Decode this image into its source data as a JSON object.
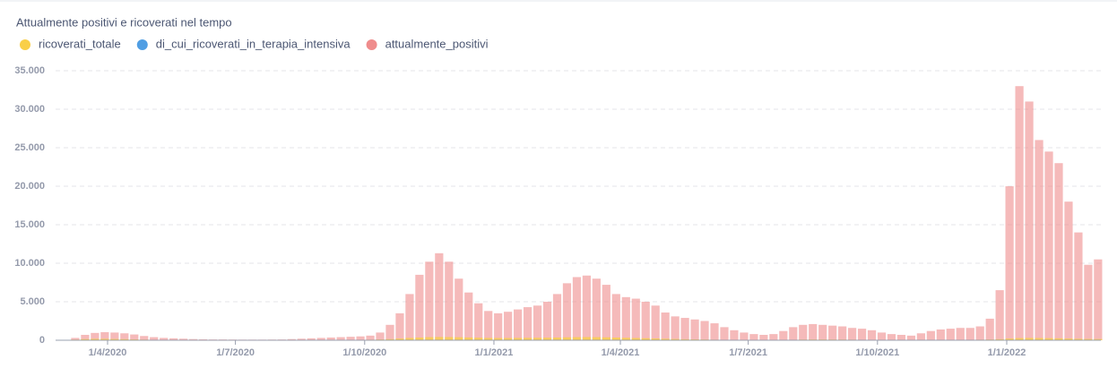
{
  "chart_data": {
    "type": "bar",
    "title": "Attualmente positivi e ricoverati nel tempo",
    "x": [
      "2020-03-02",
      "2020-03-09",
      "2020-03-16",
      "2020-03-23",
      "2020-03-30",
      "2020-04-06",
      "2020-04-13",
      "2020-04-20",
      "2020-04-27",
      "2020-05-04",
      "2020-05-11",
      "2020-05-18",
      "2020-05-25",
      "2020-06-01",
      "2020-06-08",
      "2020-06-15",
      "2020-06-22",
      "2020-06-29",
      "2020-07-06",
      "2020-07-13",
      "2020-07-20",
      "2020-07-27",
      "2020-08-03",
      "2020-08-10",
      "2020-08-17",
      "2020-08-24",
      "2020-08-31",
      "2020-09-07",
      "2020-09-14",
      "2020-09-21",
      "2020-09-28",
      "2020-10-05",
      "2020-10-12",
      "2020-10-19",
      "2020-10-26",
      "2020-11-02",
      "2020-11-09",
      "2020-11-16",
      "2020-11-23",
      "2020-11-30",
      "2020-12-07",
      "2020-12-14",
      "2020-12-21",
      "2020-12-28",
      "2021-01-04",
      "2021-01-11",
      "2021-01-18",
      "2021-01-25",
      "2021-02-01",
      "2021-02-08",
      "2021-02-15",
      "2021-02-22",
      "2021-03-01",
      "2021-03-08",
      "2021-03-15",
      "2021-03-22",
      "2021-03-29",
      "2021-04-05",
      "2021-04-12",
      "2021-04-19",
      "2021-04-26",
      "2021-05-03",
      "2021-05-10",
      "2021-05-17",
      "2021-05-24",
      "2021-05-31",
      "2021-06-07",
      "2021-06-14",
      "2021-06-21",
      "2021-06-28",
      "2021-07-05",
      "2021-07-12",
      "2021-07-19",
      "2021-07-26",
      "2021-08-02",
      "2021-08-09",
      "2021-08-16",
      "2021-08-23",
      "2021-08-30",
      "2021-09-06",
      "2021-09-13",
      "2021-09-20",
      "2021-09-27",
      "2021-10-04",
      "2021-10-11",
      "2021-10-18",
      "2021-10-25",
      "2021-11-01",
      "2021-11-08",
      "2021-11-15",
      "2021-11-22",
      "2021-11-29",
      "2021-12-06",
      "2021-12-13",
      "2021-12-20",
      "2021-12-27",
      "2022-01-03",
      "2022-01-10",
      "2022-01-17",
      "2022-01-24",
      "2022-01-31",
      "2022-02-07",
      "2022-02-14",
      "2022-02-21",
      "2022-02-28",
      "2022-03-07"
    ],
    "series": [
      {
        "name": "ricoverati_totale",
        "color": "#f9cf48",
        "values": [
          20,
          80,
          150,
          180,
          180,
          160,
          140,
          110,
          80,
          60,
          40,
          30,
          20,
          15,
          10,
          8,
          6,
          5,
          5,
          5,
          5,
          6,
          8,
          10,
          15,
          20,
          25,
          30,
          40,
          50,
          60,
          70,
          100,
          150,
          220,
          300,
          350,
          400,
          420,
          410,
          390,
          360,
          330,
          300,
          290,
          290,
          300,
          310,
          320,
          330,
          350,
          380,
          400,
          410,
          400,
          380,
          350,
          320,
          290,
          260,
          230,
          190,
          160,
          130,
          110,
          90,
          70,
          50,
          40,
          30,
          25,
          25,
          30,
          40,
          60,
          80,
          90,
          90,
          85,
          80,
          70,
          60,
          50,
          40,
          35,
          30,
          30,
          35,
          40,
          45,
          50,
          55,
          60,
          70,
          90,
          140,
          220,
          280,
          300,
          290,
          270,
          250,
          220,
          190,
          170,
          160
        ]
      },
      {
        "name": "di_cui_ricoverati_in_terapia_intensiva",
        "color": "#509ee3",
        "values": [
          3,
          12,
          25,
          30,
          30,
          27,
          22,
          15,
          10,
          7,
          5,
          3,
          2,
          2,
          1,
          1,
          1,
          1,
          1,
          1,
          1,
          1,
          1,
          2,
          2,
          3,
          3,
          4,
          5,
          6,
          7,
          8,
          12,
          18,
          28,
          38,
          45,
          52,
          55,
          53,
          50,
          46,
          42,
          38,
          36,
          36,
          37,
          38,
          39,
          40,
          42,
          46,
          50,
          52,
          50,
          47,
          43,
          39,
          35,
          31,
          27,
          22,
          18,
          15,
          12,
          10,
          8,
          6,
          4,
          3,
          3,
          3,
          3,
          5,
          8,
          10,
          11,
          11,
          10,
          10,
          9,
          8,
          6,
          5,
          4,
          4,
          4,
          4,
          5,
          5,
          6,
          7,
          7,
          8,
          10,
          15,
          22,
          28,
          30,
          28,
          26,
          24,
          21,
          18,
          16,
          15
        ]
      },
      {
        "name": "attualmente_positivi",
        "color": "#ef8c8c",
        "values": [
          50,
          300,
          700,
          950,
          1050,
          1000,
          900,
          750,
          550,
          400,
          300,
          250,
          200,
          150,
          120,
          100,
          100,
          90,
          80,
          80,
          80,
          90,
          100,
          150,
          200,
          250,
          300,
          350,
          400,
          450,
          500,
          600,
          1000,
          2000,
          3500,
          6000,
          8500,
          10200,
          11300,
          10200,
          8000,
          6200,
          4800,
          3800,
          3500,
          3700,
          4000,
          4300,
          4500,
          5000,
          6000,
          7400,
          8200,
          8400,
          8000,
          7200,
          6000,
          5600,
          5400,
          5000,
          4500,
          3600,
          3100,
          2900,
          2700,
          2500,
          2200,
          1700,
          1300,
          1000,
          800,
          700,
          800,
          1200,
          1700,
          2000,
          2100,
          2000,
          1900,
          1800,
          1600,
          1500,
          1300,
          1000,
          800,
          700,
          600,
          900,
          1200,
          1400,
          1500,
          1600,
          1600,
          1800,
          2800,
          6500,
          20000,
          33000,
          31000,
          26000,
          24500,
          23000,
          18000,
          14000,
          9800,
          10500
        ]
      }
    ],
    "xlim": [
      "2020-02-24",
      "2022-03-09"
    ],
    "xticks": [
      {
        "value": "2020-04-01",
        "label": "1/4/2020"
      },
      {
        "value": "2020-07-01",
        "label": "1/7/2020"
      },
      {
        "value": "2020-10-01",
        "label": "1/10/2020"
      },
      {
        "value": "2021-01-01",
        "label": "1/1/2021"
      },
      {
        "value": "2021-04-01",
        "label": "1/4/2021"
      },
      {
        "value": "2021-07-01",
        "label": "1/7/2021"
      },
      {
        "value": "2021-10-01",
        "label": "1/10/2021"
      },
      {
        "value": "2022-01-01",
        "label": "1/1/2022"
      }
    ],
    "ylim": [
      0,
      35000
    ],
    "yticks": [
      0,
      {
        "value": 5000,
        "label": "5.000"
      },
      {
        "value": 10000,
        "label": "10.000"
      },
      {
        "value": 15000,
        "label": "15.000"
      },
      {
        "value": 20000,
        "label": "20.000"
      },
      {
        "value": 25000,
        "label": "25.000"
      },
      {
        "value": 30000,
        "label": "30.000"
      },
      {
        "value": 35000,
        "label": "35.000"
      }
    ],
    "grid": true
  }
}
